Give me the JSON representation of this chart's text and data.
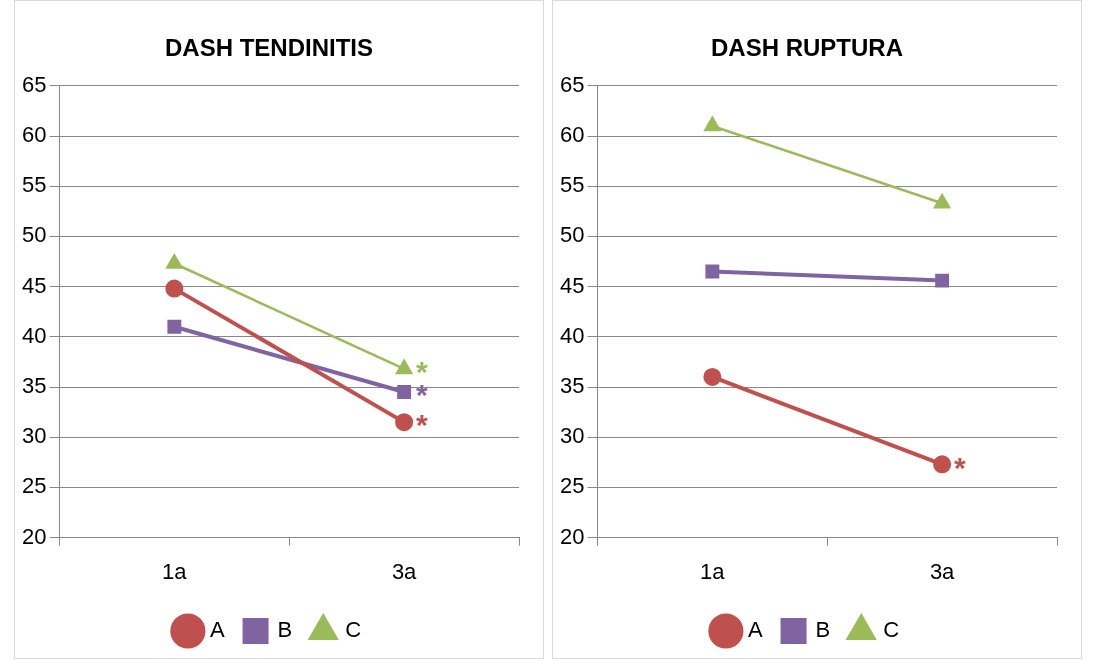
{
  "chart_data": [
    {
      "type": "line",
      "title": "DASH TENDINITIS",
      "categories": [
        "1a",
        "3a"
      ],
      "series": [
        {
          "name": "A",
          "color": "#c0504d",
          "marker": "circle",
          "values": [
            44.8,
            31.5
          ]
        },
        {
          "name": "B",
          "color": "#8064a2",
          "marker": "square",
          "values": [
            41,
            34.5
          ]
        },
        {
          "name": "C",
          "color": "#9bbb59",
          "marker": "triangle",
          "values": [
            47.3,
            36.8
          ]
        }
      ],
      "ylim": [
        20,
        65
      ],
      "yticks": [
        20,
        25,
        30,
        35,
        40,
        45,
        50,
        55,
        60,
        65
      ],
      "grid": "y",
      "legend": "bottom",
      "annotations": [
        {
          "text": "*",
          "x": "3a",
          "y": 36.8
        },
        {
          "text": "*",
          "x": "3a",
          "y": 34.5
        },
        {
          "text": "*",
          "x": "3a",
          "y": 31.5
        }
      ]
    },
    {
      "type": "line",
      "title": "DASH RUPTURA",
      "categories": [
        "1a",
        "3a"
      ],
      "series": [
        {
          "name": "A",
          "color": "#c0504d",
          "marker": "circle",
          "values": [
            36,
            27.3
          ]
        },
        {
          "name": "B",
          "color": "#8064a2",
          "marker": "square",
          "values": [
            46.5,
            45.6
          ]
        },
        {
          "name": "C",
          "color": "#9bbb59",
          "marker": "triangle",
          "values": [
            61,
            53.3
          ]
        }
      ],
      "ylim": [
        20,
        65
      ],
      "yticks": [
        20,
        25,
        30,
        35,
        40,
        45,
        50,
        55,
        60,
        65
      ],
      "grid": "y",
      "legend": "bottom",
      "annotations": [
        {
          "text": "*",
          "x": "3a",
          "y": 27.3
        }
      ]
    }
  ]
}
